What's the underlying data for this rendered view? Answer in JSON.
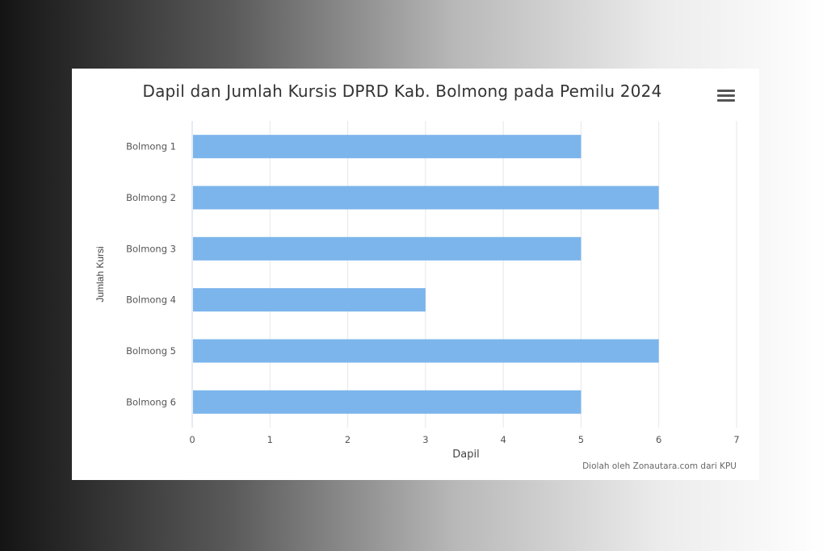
{
  "chart_data": {
    "type": "bar",
    "orientation": "horizontal",
    "title": "Dapil dan Jumlah Kursis DPRD Kab. Bolmong pada Pemilu 2024",
    "categories": [
      "Bolmong 1",
      "Bolmong 2",
      "Bolmong 3",
      "Bolmong 4",
      "Bolmong 5",
      "Bolmong 6"
    ],
    "values": [
      5,
      6,
      5,
      3,
      6,
      5
    ],
    "xlabel": "Dapil",
    "ylabel": "Jumlah Kursi",
    "xlim": [
      0,
      7
    ],
    "xticks": [
      "0",
      "1",
      "2",
      "3",
      "4",
      "5",
      "6",
      "7"
    ],
    "grid": true,
    "bar_color": "#7cb5ec",
    "credit": "Diolah oleh Zonautara.com dari KPU"
  },
  "toolbar": {
    "menu_icon": "hamburger-menu-icon"
  }
}
